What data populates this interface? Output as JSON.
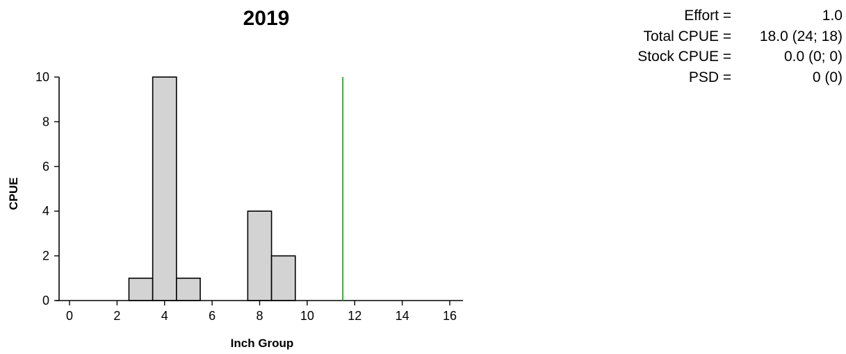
{
  "chart_data": {
    "type": "bar",
    "title": "2019",
    "xlabel": "Inch Group",
    "ylabel": "CPUE",
    "xlim": [
      -0.5,
      16.5
    ],
    "ylim": [
      0,
      10
    ],
    "xticks": [
      0,
      2,
      4,
      6,
      8,
      10,
      12,
      14,
      16
    ],
    "yticks": [
      0,
      2,
      4,
      6,
      8,
      10
    ],
    "x": [
      3,
      4,
      5,
      8,
      9
    ],
    "values": [
      1,
      10,
      1,
      4,
      2
    ],
    "bar_color": "#d3d3d3",
    "reference_line": {
      "x": 11.5,
      "color": "#2ca02c"
    },
    "grid": false,
    "legend": "none"
  },
  "stats": [
    {
      "label": "Effort",
      "eq": "=",
      "value": "1.0"
    },
    {
      "label": "Total CPUE",
      "eq": "=",
      "value": "18.0 (24; 18)"
    },
    {
      "label": "Stock CPUE",
      "eq": "=",
      "value": "0.0 (0; 0)"
    },
    {
      "label": "PSD",
      "eq": "=",
      "value": "0 (0)"
    }
  ]
}
